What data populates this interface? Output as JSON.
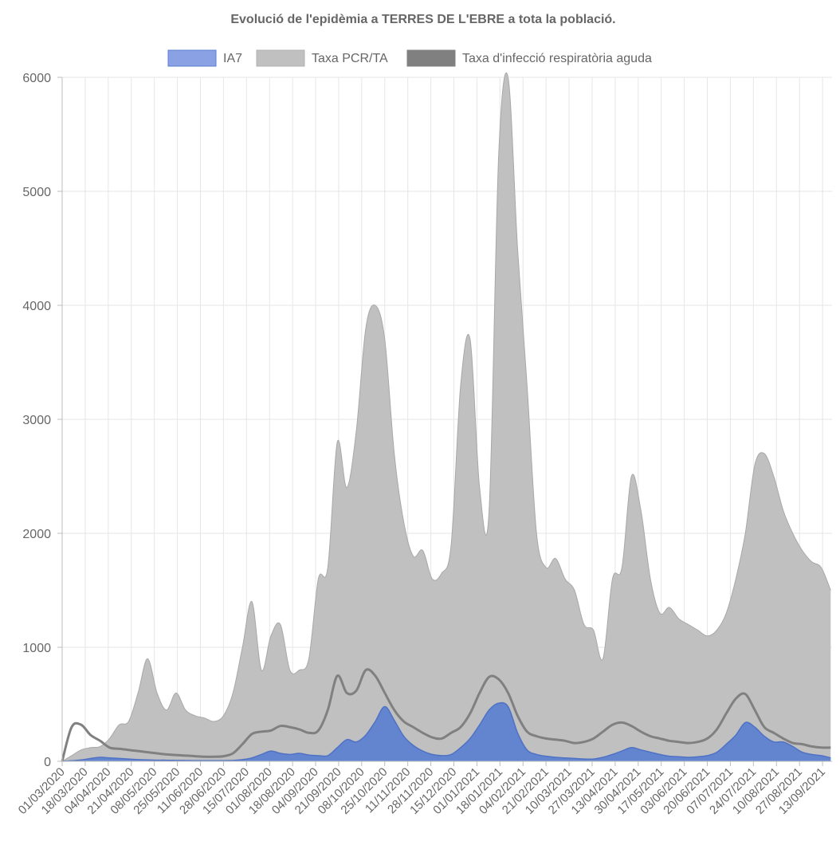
{
  "chart_data": {
    "type": "area",
    "title": "Evolució de l'epidèmia a TERRES DE L'EBRE a tota la població.",
    "xlabel": "",
    "ylabel": "",
    "ylim": [
      0,
      6000
    ],
    "yticks": [
      "0",
      "1000",
      "2000",
      "3000",
      "4000",
      "5000",
      "6000"
    ],
    "grid": true,
    "legend_position": "top",
    "x_start": "01/03/2020",
    "x_end": "20/09/2021",
    "x_tick_labels": [
      "01/03/2020",
      "18/03/2020",
      "04/04/2020",
      "21/04/2020",
      "08/05/2020",
      "25/05/2020",
      "11/06/2020",
      "28/06/2020",
      "15/07/2020",
      "01/08/2020",
      "18/08/2020",
      "04/09/2020",
      "21/09/2020",
      "08/10/2020",
      "25/10/2020",
      "11/11/2020",
      "28/11/2020",
      "15/12/2020",
      "01/01/2021",
      "18/01/2021",
      "04/02/2021",
      "21/02/2021",
      "10/03/2021",
      "27/03/2021",
      "13/04/2021",
      "30/04/2021",
      "17/05/2021",
      "03/06/2021",
      "20/06/2021",
      "07/07/2021",
      "24/07/2021",
      "10/08/2021",
      "27/08/2021",
      "13/09/2021"
    ],
    "x": [
      "01/03/2020",
      "08/03/2020",
      "15/03/2020",
      "22/03/2020",
      "29/03/2020",
      "05/04/2020",
      "12/04/2020",
      "19/04/2020",
      "26/04/2020",
      "03/05/2020",
      "10/05/2020",
      "17/05/2020",
      "24/05/2020",
      "31/05/2020",
      "07/06/2020",
      "14/06/2020",
      "21/06/2020",
      "28/06/2020",
      "05/07/2020",
      "12/07/2020",
      "19/07/2020",
      "26/07/2020",
      "02/08/2020",
      "09/08/2020",
      "16/08/2020",
      "23/08/2020",
      "30/08/2020",
      "06/09/2020",
      "13/09/2020",
      "20/09/2020",
      "27/09/2020",
      "04/10/2020",
      "11/10/2020",
      "18/10/2020",
      "25/10/2020",
      "01/11/2020",
      "08/11/2020",
      "15/11/2020",
      "22/11/2020",
      "29/11/2020",
      "06/12/2020",
      "13/12/2020",
      "20/12/2020",
      "27/12/2020",
      "03/01/2021",
      "10/01/2021",
      "17/01/2021",
      "24/01/2021",
      "31/01/2021",
      "07/02/2021",
      "14/02/2021",
      "21/02/2021",
      "28/02/2021",
      "07/03/2021",
      "14/03/2021",
      "21/03/2021",
      "28/03/2021",
      "04/04/2021",
      "11/04/2021",
      "18/04/2021",
      "25/04/2021",
      "02/05/2021",
      "09/05/2021",
      "16/05/2021",
      "23/05/2021",
      "30/05/2021",
      "06/06/2021",
      "13/06/2021",
      "20/06/2021",
      "27/06/2021",
      "04/07/2021",
      "11/07/2021",
      "18/07/2021",
      "25/07/2021",
      "01/08/2021",
      "08/08/2021",
      "15/08/2021",
      "22/08/2021",
      "29/08/2021",
      "05/09/2021",
      "12/09/2021",
      "19/09/2021"
    ],
    "series": [
      {
        "name": "IA7",
        "color": "#5b7fcf",
        "values": [
          0,
          5,
          12,
          25,
          35,
          30,
          25,
          20,
          15,
          12,
          10,
          10,
          8,
          8,
          6,
          6,
          6,
          6,
          8,
          15,
          30,
          60,
          90,
          70,
          60,
          70,
          55,
          50,
          50,
          120,
          190,
          170,
          230,
          350,
          480,
          360,
          220,
          140,
          90,
          60,
          50,
          60,
          120,
          200,
          320,
          450,
          510,
          480,
          250,
          100,
          60,
          45,
          35,
          30,
          25,
          20,
          20,
          35,
          60,
          90,
          120,
          100,
          80,
          60,
          45,
          40,
          35,
          40,
          50,
          80,
          150,
          230,
          340,
          300,
          220,
          170,
          170,
          130,
          80,
          60,
          50,
          30
        ]
      },
      {
        "name": "Taxa PCR/TA",
        "color": "#c0c0c0",
        "values": [
          0,
          50,
          100,
          120,
          130,
          200,
          320,
          350,
          600,
          900,
          600,
          450,
          600,
          450,
          400,
          380,
          350,
          400,
          600,
          1000,
          1400,
          800,
          1100,
          1200,
          800,
          800,
          900,
          1600,
          1700,
          2800,
          2400,
          2900,
          3800,
          4000,
          3700,
          2700,
          2100,
          1800,
          1850,
          1600,
          1650,
          1900,
          3300,
          3700,
          2400,
          2200,
          5300,
          6000,
          4500,
          3300,
          2000,
          1700,
          1780,
          1600,
          1500,
          1200,
          1150,
          900,
          1600,
          1700,
          2500,
          2200,
          1600,
          1300,
          1350,
          1250,
          1200,
          1150,
          1100,
          1150,
          1300,
          1600,
          2000,
          2600,
          2700,
          2500,
          2200,
          2000,
          1850,
          1750,
          1700,
          1500
        ]
      },
      {
        "name": "Taxa d'infecció respiratòria aguda",
        "color": "#808080",
        "values": [
          0,
          300,
          320,
          230,
          180,
          120,
          110,
          100,
          90,
          80,
          70,
          60,
          55,
          50,
          45,
          40,
          40,
          45,
          70,
          150,
          240,
          260,
          270,
          310,
          300,
          280,
          250,
          270,
          450,
          750,
          600,
          620,
          800,
          750,
          600,
          450,
          350,
          300,
          250,
          210,
          200,
          250,
          300,
          420,
          600,
          740,
          720,
          600,
          400,
          260,
          220,
          200,
          190,
          180,
          160,
          170,
          200,
          260,
          320,
          340,
          310,
          260,
          220,
          200,
          180,
          170,
          160,
          170,
          200,
          280,
          420,
          550,
          590,
          450,
          300,
          250,
          200,
          160,
          150,
          130,
          120,
          120
        ]
      }
    ]
  }
}
